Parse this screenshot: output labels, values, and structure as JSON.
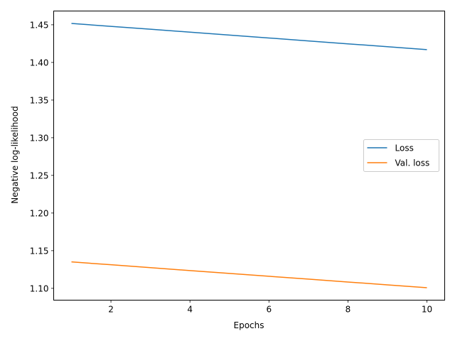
{
  "chart_data": {
    "type": "line",
    "title": "",
    "xlabel": "Epochs",
    "ylabel": "Negative log-likelihood",
    "xlim": [
      0.55,
      10.45
    ],
    "ylim": [
      1.0843,
      1.4683
    ],
    "xticks": [
      2,
      4,
      6,
      8,
      10
    ],
    "xtick_labels": [
      "2",
      "4",
      "6",
      "8",
      "10"
    ],
    "yticks": [
      1.1,
      1.15,
      1.2,
      1.25,
      1.3,
      1.35,
      1.4,
      1.45
    ],
    "ytick_labels": [
      "1.10",
      "1.15",
      "1.20",
      "1.25",
      "1.30",
      "1.35",
      "1.40",
      "1.45"
    ],
    "grid": false,
    "legend_position": "center-right",
    "x": [
      1,
      2,
      3,
      4,
      5,
      6,
      7,
      8,
      9,
      10
    ],
    "series": [
      {
        "name": "Loss",
        "color": "#1f77b4",
        "values": [
          1.4518,
          1.4479,
          1.4441,
          1.4402,
          1.4363,
          1.4325,
          1.4286,
          1.4247,
          1.4209,
          1.417
        ]
      },
      {
        "name": "Val. loss",
        "color": "#ff7f0e",
        "values": [
          1.1351,
          1.1313,
          1.1275,
          1.1236,
          1.1198,
          1.116,
          1.1122,
          1.1084,
          1.1046,
          1.1008
        ]
      }
    ]
  }
}
